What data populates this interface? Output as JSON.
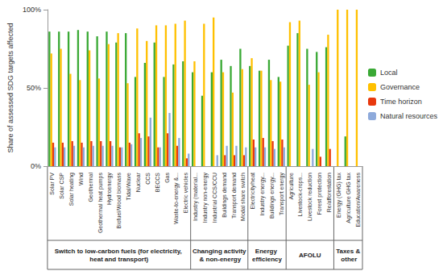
{
  "chart_data": {
    "type": "bar",
    "y_label": "Share of assessed SDG targets affected",
    "categories": [
      "Solar PV",
      "Solar CSP",
      "Solar heating",
      "Wind",
      "Geothermal",
      "Geothermal heat pumps",
      "Hydroenergy",
      "Biofuel/Wood biomass",
      "Tidal/Wave",
      "Nuclear",
      "CCS",
      "BECCS",
      "Gas",
      "Waste-to-energy &...",
      "Electric vehicles",
      "Industry (material...",
      "Industry non-energy",
      "Industrial CCS/CCU",
      "Buildings demand",
      "Transport demand",
      "Modal share switch",
      "Electricity/heat",
      "Industry energy...",
      "Buildings energy...",
      "Transport energy",
      "Agriculture",
      "Livestock-crops...",
      "Livestock reduction",
      "Forest protection",
      "Re/afforestation",
      "Energy (GHG) tax",
      "Agriculture GHG tax",
      "Education/Awareness"
    ],
    "groups": [
      {
        "name": "Switch to low-carbon fuels (for electricity, heat and transport)",
        "size": 15
      },
      {
        "name": "Changing activity & non-energy",
        "size": 6
      },
      {
        "name": "Energy efficiency",
        "size": 4
      },
      {
        "name": "AFOLU",
        "size": 5
      },
      {
        "name": "Taxes & other",
        "size": 3
      }
    ],
    "series": [
      {
        "name": "Local",
        "color": "#3aa935",
        "values": [
          86,
          86,
          86,
          87,
          86,
          83,
          86,
          79,
          85,
          57,
          66,
          79,
          57,
          65,
          67,
          60,
          45,
          60,
          68,
          64,
          75,
          64,
          61,
          68,
          57,
          77,
          85,
          75,
          73,
          76,
          0,
          19,
          0
        ]
      },
      {
        "name": "Governance",
        "color": "#ffc000",
        "values": [
          72,
          75,
          59,
          55,
          74,
          56,
          78,
          85,
          53,
          88,
          80,
          90,
          90,
          91,
          93,
          67,
          91,
          95,
          60,
          47,
          62,
          69,
          61,
          55,
          54,
          92,
          93,
          52,
          60,
          84,
          100,
          100,
          100
        ]
      },
      {
        "name": "Time horizon",
        "color": "#e8380d",
        "values": [
          15,
          15,
          16,
          15,
          16,
          16,
          16,
          12,
          15,
          21,
          19,
          12,
          21,
          13,
          5,
          0,
          0,
          0,
          7,
          7,
          7,
          17,
          18,
          16,
          17,
          0,
          0,
          0,
          6,
          11,
          0,
          0,
          0
        ]
      },
      {
        "name": "Natural resources",
        "color": "#8eaadb",
        "values": [
          12,
          12,
          13,
          12,
          13,
          13,
          13,
          12,
          14,
          18,
          31,
          12,
          34,
          18,
          8,
          0,
          0,
          7,
          13,
          13,
          12,
          12,
          12,
          11,
          12,
          0,
          0,
          11,
          0,
          0,
          0,
          0,
          0
        ]
      }
    ],
    "ylim": [
      0,
      100
    ],
    "yticks": [
      {
        "value": 0,
        "label": "0%"
      },
      {
        "value": 50,
        "label": "50%"
      },
      {
        "value": 100,
        "label": "100%"
      }
    ],
    "grid": false,
    "legend": "right"
  }
}
